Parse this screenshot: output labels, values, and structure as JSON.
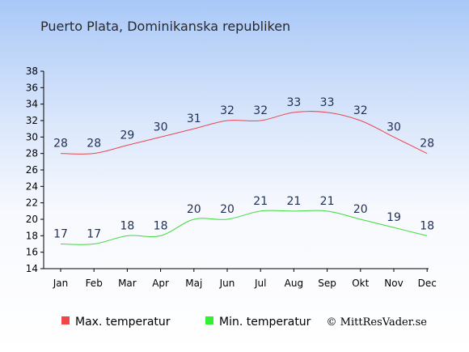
{
  "chart_data": {
    "type": "line",
    "title": "Puerto Plata, Dominikanska republiken",
    "categories": [
      "Jan",
      "Feb",
      "Mar",
      "Apr",
      "Maj",
      "Jun",
      "Jul",
      "Aug",
      "Sep",
      "Okt",
      "Nov",
      "Dec"
    ],
    "ylim": [
      14,
      38
    ],
    "yticks": [
      14,
      16,
      18,
      20,
      22,
      24,
      26,
      28,
      30,
      32,
      34,
      36,
      38
    ],
    "grid": false,
    "legend_position": "bottom",
    "series": [
      {
        "name": "Max. temperatur",
        "color": "#e8484f",
        "legend_color": "#f04646",
        "values": [
          28,
          28,
          29,
          30,
          31,
          32,
          32,
          33,
          33,
          32,
          30,
          28
        ]
      },
      {
        "name": "Min. temperatur",
        "color": "#3bdc3b",
        "legend_color": "#33ee33",
        "values": [
          17,
          17,
          18,
          18,
          20,
          20,
          21,
          21,
          21,
          20,
          19,
          18
        ]
      }
    ],
    "credit": "© MittResVader.se"
  }
}
